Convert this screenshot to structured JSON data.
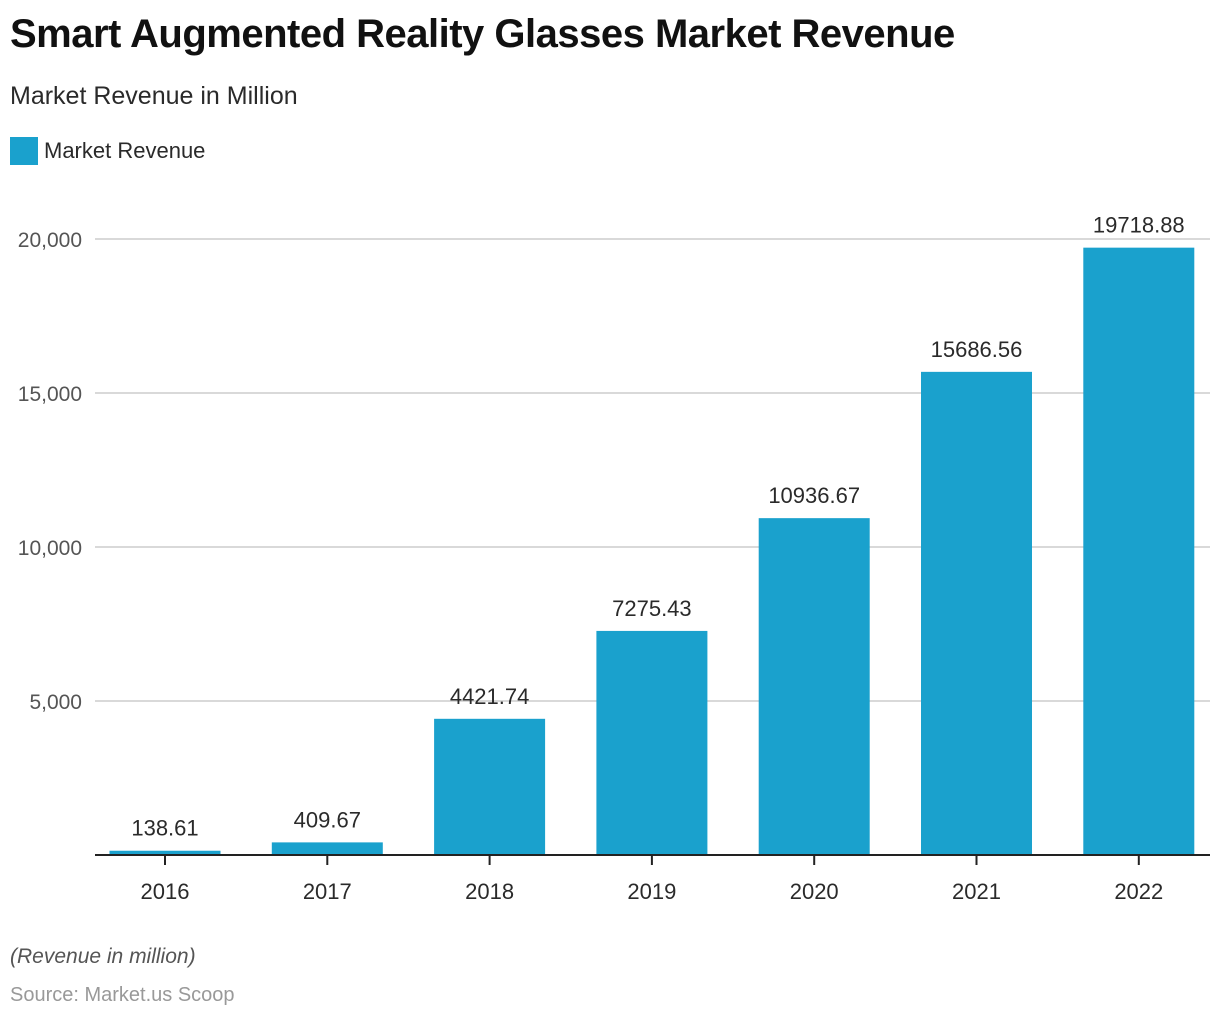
{
  "chart_data": {
    "type": "bar",
    "title": "Smart Augmented Reality Glasses Market Revenue",
    "subtitle": "Market Revenue in Million",
    "xlabel": "",
    "ylabel": "",
    "categories": [
      "2016",
      "2017",
      "2018",
      "2019",
      "2020",
      "2021",
      "2022"
    ],
    "series": [
      {
        "name": "Market Revenue",
        "color": "#1aa1cd",
        "values": [
          138.61,
          409.67,
          4421.74,
          7275.43,
          10936.67,
          15686.56,
          19718.88
        ],
        "labels": [
          "138.61",
          "409.67",
          "4421.74",
          "7275.43",
          "10936.67",
          "15686.56",
          "19718.88"
        ]
      }
    ],
    "ylim": [
      0,
      20000
    ],
    "yticks": [
      5000,
      10000,
      15000,
      20000
    ],
    "ytick_labels": [
      "5,000",
      "10,000",
      "15,000",
      "20,000"
    ],
    "grid": true,
    "legend": "top-left",
    "note": "(Revenue in million)",
    "source": "Source: Market.us Scoop"
  }
}
